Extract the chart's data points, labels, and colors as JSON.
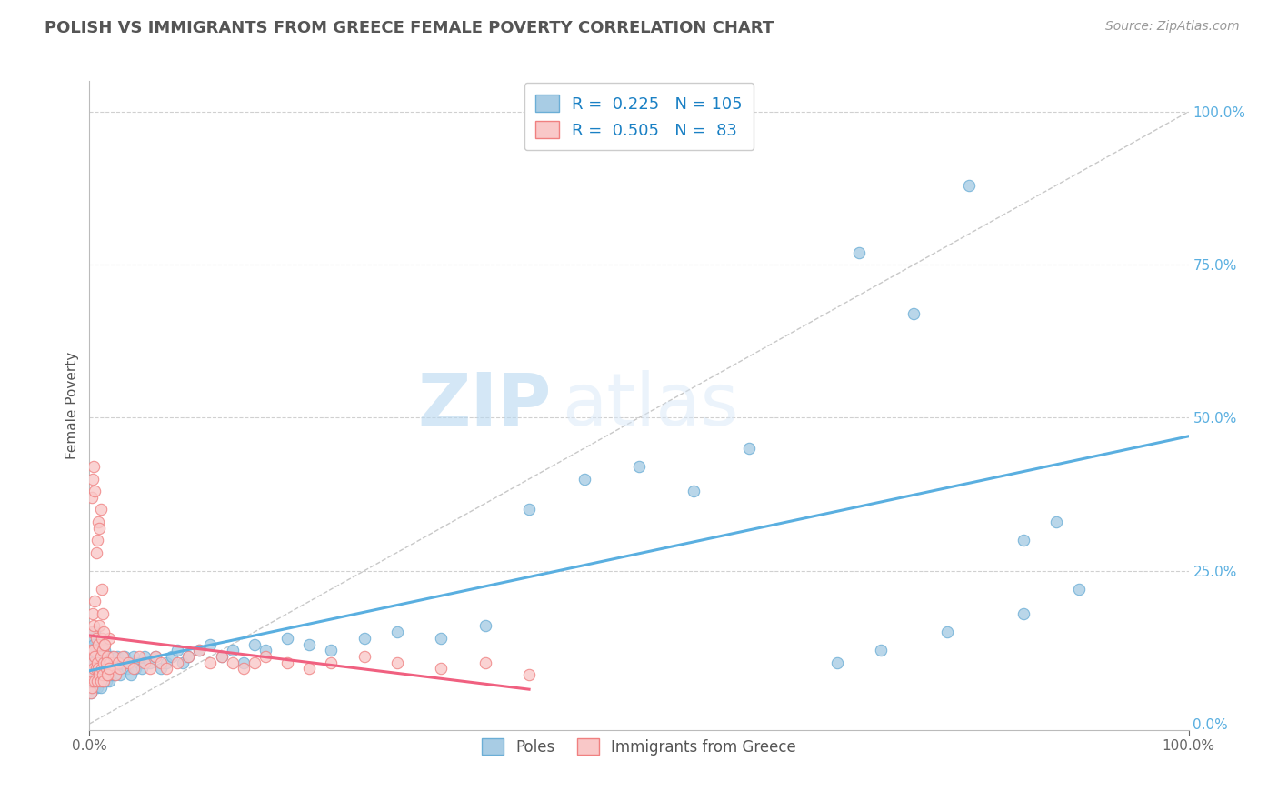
{
  "title": "POLISH VS IMMIGRANTS FROM GREECE FEMALE POVERTY CORRELATION CHART",
  "source": "Source: ZipAtlas.com",
  "ylabel": "Female Poverty",
  "yticks": [
    "0.0%",
    "25.0%",
    "50.0%",
    "75.0%",
    "100.0%"
  ],
  "ytick_vals": [
    0.0,
    0.25,
    0.5,
    0.75,
    1.0
  ],
  "xticks": [
    "0.0%",
    "100.0%"
  ],
  "xtick_vals": [
    0.0,
    1.0
  ],
  "xlim": [
    0.0,
    1.0
  ],
  "ylim": [
    -0.01,
    1.05
  ],
  "R_poles": 0.225,
  "N_poles": 105,
  "R_greece": 0.505,
  "N_greece": 83,
  "poles_color": "#6baed6",
  "poles_color_fill": "#a8cce4",
  "greece_color": "#f08080",
  "greece_color_fill": "#f9c8c8",
  "poles_line_color": "#5aafe0",
  "greece_line_color": "#f06080",
  "diagonal_color": "#c8c8c8",
  "grid_color": "#d0d0d0",
  "title_color": "#555555",
  "watermark_zip": "ZIP",
  "watermark_atlas": "atlas",
  "legend_label_poles": "Poles",
  "legend_label_greece": "Immigrants from Greece",
  "background_color": "#ffffff",
  "seed": 42,
  "poles_x": [
    0.001,
    0.001,
    0.002,
    0.002,
    0.002,
    0.003,
    0.003,
    0.003,
    0.004,
    0.004,
    0.004,
    0.005,
    0.005,
    0.005,
    0.005,
    0.006,
    0.006,
    0.006,
    0.007,
    0.007,
    0.007,
    0.008,
    0.008,
    0.008,
    0.009,
    0.009,
    0.009,
    0.01,
    0.01,
    0.01,
    0.01,
    0.011,
    0.011,
    0.012,
    0.012,
    0.012,
    0.013,
    0.013,
    0.014,
    0.014,
    0.015,
    0.015,
    0.016,
    0.016,
    0.017,
    0.018,
    0.018,
    0.019,
    0.02,
    0.02,
    0.021,
    0.022,
    0.023,
    0.024,
    0.025,
    0.026,
    0.027,
    0.028,
    0.03,
    0.032,
    0.034,
    0.036,
    0.038,
    0.04,
    0.042,
    0.045,
    0.048,
    0.05,
    0.055,
    0.06,
    0.065,
    0.07,
    0.075,
    0.08,
    0.085,
    0.09,
    0.1,
    0.11,
    0.12,
    0.13,
    0.14,
    0.15,
    0.16,
    0.18,
    0.2,
    0.22,
    0.25,
    0.28,
    0.32,
    0.36,
    0.4,
    0.45,
    0.5,
    0.55,
    0.6,
    0.7,
    0.75,
    0.8,
    0.85,
    0.88,
    0.9,
    0.85,
    0.78,
    0.72,
    0.68
  ],
  "poles_y": [
    0.05,
    0.1,
    0.08,
    0.12,
    0.06,
    0.09,
    0.14,
    0.07,
    0.11,
    0.08,
    0.13,
    0.1,
    0.06,
    0.15,
    0.09,
    0.08,
    0.12,
    0.07,
    0.11,
    0.09,
    0.06,
    0.1,
    0.13,
    0.08,
    0.09,
    0.12,
    0.07,
    0.1,
    0.08,
    0.11,
    0.06,
    0.09,
    0.13,
    0.08,
    0.1,
    0.07,
    0.09,
    0.11,
    0.08,
    0.12,
    0.07,
    0.1,
    0.09,
    0.11,
    0.08,
    0.07,
    0.1,
    0.09,
    0.08,
    0.11,
    0.09,
    0.1,
    0.08,
    0.09,
    0.11,
    0.1,
    0.09,
    0.08,
    0.1,
    0.11,
    0.09,
    0.1,
    0.08,
    0.11,
    0.09,
    0.1,
    0.09,
    0.11,
    0.1,
    0.11,
    0.09,
    0.1,
    0.11,
    0.12,
    0.1,
    0.11,
    0.12,
    0.13,
    0.11,
    0.12,
    0.1,
    0.13,
    0.12,
    0.14,
    0.13,
    0.12,
    0.14,
    0.15,
    0.14,
    0.16,
    0.35,
    0.4,
    0.42,
    0.38,
    0.45,
    0.77,
    0.67,
    0.88,
    0.3,
    0.33,
    0.22,
    0.18,
    0.15,
    0.12,
    0.1
  ],
  "greece_x": [
    0.001,
    0.001,
    0.002,
    0.002,
    0.002,
    0.003,
    0.003,
    0.003,
    0.004,
    0.004,
    0.004,
    0.005,
    0.005,
    0.005,
    0.006,
    0.006,
    0.007,
    0.007,
    0.008,
    0.008,
    0.009,
    0.009,
    0.01,
    0.01,
    0.011,
    0.011,
    0.012,
    0.012,
    0.013,
    0.013,
    0.014,
    0.015,
    0.016,
    0.017,
    0.018,
    0.019,
    0.02,
    0.022,
    0.024,
    0.026,
    0.028,
    0.03,
    0.035,
    0.04,
    0.045,
    0.05,
    0.055,
    0.06,
    0.065,
    0.07,
    0.08,
    0.09,
    0.1,
    0.11,
    0.12,
    0.13,
    0.14,
    0.15,
    0.16,
    0.18,
    0.2,
    0.22,
    0.25,
    0.28,
    0.32,
    0.36,
    0.4,
    0.002,
    0.003,
    0.004,
    0.005,
    0.006,
    0.007,
    0.008,
    0.009,
    0.01,
    0.011,
    0.012,
    0.013,
    0.014,
    0.015,
    0.016,
    0.018
  ],
  "greece_y": [
    0.05,
    0.12,
    0.08,
    0.15,
    0.06,
    0.1,
    0.18,
    0.07,
    0.12,
    0.09,
    0.16,
    0.11,
    0.07,
    0.2,
    0.09,
    0.14,
    0.1,
    0.07,
    0.13,
    0.09,
    0.08,
    0.16,
    0.11,
    0.07,
    0.14,
    0.09,
    0.08,
    0.12,
    0.1,
    0.07,
    0.13,
    0.09,
    0.11,
    0.08,
    0.14,
    0.1,
    0.09,
    0.11,
    0.08,
    0.1,
    0.09,
    0.11,
    0.1,
    0.09,
    0.11,
    0.1,
    0.09,
    0.11,
    0.1,
    0.09,
    0.1,
    0.11,
    0.12,
    0.1,
    0.11,
    0.1,
    0.09,
    0.1,
    0.11,
    0.1,
    0.09,
    0.1,
    0.11,
    0.1,
    0.09,
    0.1,
    0.08,
    0.37,
    0.4,
    0.42,
    0.38,
    0.28,
    0.3,
    0.33,
    0.32,
    0.35,
    0.22,
    0.18,
    0.15,
    0.13,
    0.1,
    0.08,
    0.09
  ]
}
